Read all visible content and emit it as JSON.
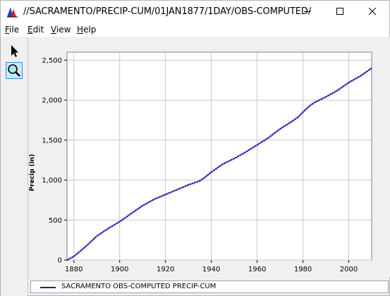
{
  "window": {
    "title": "//SACRAMENTO/PRECIP-CUM/01JAN1877/1DAY/OBS-COMPUTED/",
    "icon": "chart-app-icon",
    "controls": [
      "minimize-icon",
      "maximize-icon",
      "close-icon"
    ]
  },
  "menu": {
    "items": [
      {
        "first": "F",
        "rest": "ile"
      },
      {
        "first": "E",
        "rest": "dit"
      },
      {
        "first": "V",
        "rest": "iew"
      },
      {
        "first": "H",
        "rest": "elp"
      }
    ]
  },
  "toolbar": {
    "tools": [
      "pointer-icon",
      "zoom-icon"
    ],
    "active_tool": "zoom-icon"
  },
  "chart_data": {
    "type": "line",
    "ylabel": "Precip (in)",
    "xlabel": "",
    "xlim": [
      1877,
      2010
    ],
    "ylim": [
      0,
      2600
    ],
    "xticks": [
      1880,
      1900,
      1920,
      1940,
      1960,
      1980,
      2000
    ],
    "yticks": [
      0,
      500,
      1000,
      1500,
      2000,
      2500
    ],
    "ytick_labels": [
      "0",
      "500",
      "1,000",
      "1,500",
      "2,000",
      "2,500"
    ],
    "grid": true,
    "series_color": "#1a1aa8",
    "series": [
      {
        "name": "SACRAMENTO OBS-COMPUTED PRECIP-CUM",
        "x": [
          1877,
          1880,
          1885,
          1890,
          1895,
          1900,
          1905,
          1910,
          1915,
          1920,
          1925,
          1930,
          1935,
          1937,
          1940,
          1945,
          1950,
          1955,
          1960,
          1965,
          1970,
          1975,
          1978,
          1980,
          1983,
          1985,
          1990,
          1995,
          2000,
          2005,
          2010
        ],
        "y": [
          0,
          45,
          165,
          300,
          395,
          480,
          580,
          680,
          760,
          820,
          880,
          940,
          990,
          1030,
          1100,
          1200,
          1270,
          1350,
          1440,
          1530,
          1640,
          1730,
          1790,
          1850,
          1930,
          1970,
          2040,
          2120,
          2220,
          2300,
          2400
        ]
      }
    ],
    "legend_position": "bottom"
  }
}
